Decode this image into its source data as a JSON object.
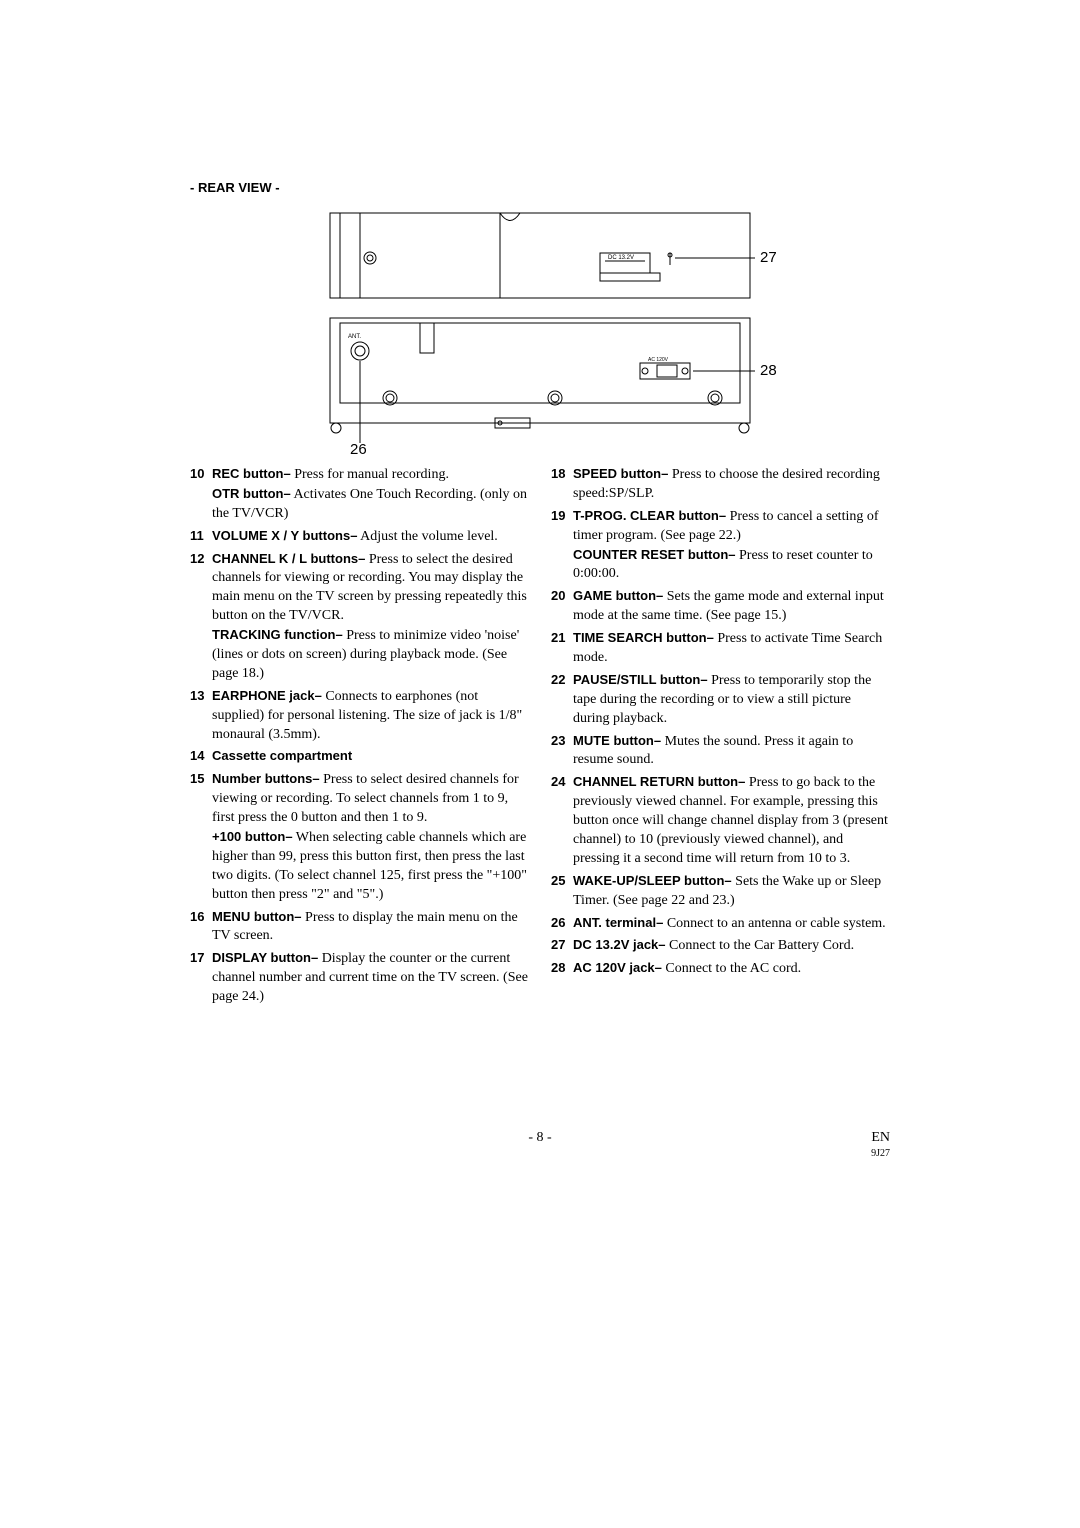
{
  "heading": "- REAR VIEW -",
  "diagram": {
    "callouts": {
      "n26": "26",
      "n27": "27",
      "n28": "28"
    },
    "label_ant": "ANT.",
    "label_dc": "DC 13.2V",
    "label_ac": "AC 120V"
  },
  "left_items": [
    {
      "n": "10",
      "parts": [
        {
          "label": "REC button–",
          "text": " Press for manual recording."
        },
        {
          "label": "OTR button–",
          "text": " Activates One Touch Recording. (only on the TV/VCR)"
        }
      ]
    },
    {
      "n": "11",
      "parts": [
        {
          "label": "VOLUME X / Y buttons–",
          "text": " Adjust the volume level."
        }
      ]
    },
    {
      "n": "12",
      "parts": [
        {
          "label": "CHANNEL K / L buttons–",
          "text": " Press to select the desired channels for viewing or recording. You may display the main menu on the TV screen by pressing repeatedly this button on the TV/VCR."
        },
        {
          "label": "TRACKING function–",
          "text": " Press to minimize video 'noise' (lines or dots on screen) during playback mode. (See page 18.)"
        }
      ]
    },
    {
      "n": "13",
      "parts": [
        {
          "label": "EARPHONE jack–",
          "text": " Connects to earphones (not supplied) for personal listening. The size of jack is 1/8\" monaural (3.5mm)."
        }
      ]
    },
    {
      "n": "14",
      "parts": [
        {
          "label": "Cassette compartment",
          "text": ""
        }
      ]
    },
    {
      "n": "15",
      "parts": [
        {
          "label": "Number buttons–",
          "text": " Press to select desired channels for viewing or recording. To select channels from 1 to 9, first press the 0 button and then 1 to 9."
        },
        {
          "label": "+100 button–",
          "text": " When selecting cable channels which are higher than 99, press this button first, then press the last two digits. (To select channel 125, first press the \"+100\" button then press \"2\" and \"5\".)"
        }
      ]
    },
    {
      "n": "16",
      "parts": [
        {
          "label": "MENU button–",
          "text": " Press to display the main menu on the TV screen."
        }
      ]
    },
    {
      "n": "17",
      "parts": [
        {
          "label": "DISPLAY button–",
          "text": " Display the counter or the current channel number and current time on the TV screen. (See page 24.)"
        }
      ]
    }
  ],
  "right_items": [
    {
      "n": "18",
      "parts": [
        {
          "label": "SPEED button–",
          "text": " Press to choose the desired recording speed:SP/SLP."
        }
      ]
    },
    {
      "n": "19",
      "parts": [
        {
          "label": "T-PROG. CLEAR button–",
          "text": " Press to cancel a setting of timer program. (See page 22.)"
        },
        {
          "label": "COUNTER RESET button–",
          "text": " Press to reset counter to 0:00:00."
        }
      ]
    },
    {
      "n": "20",
      "parts": [
        {
          "label": "GAME button–",
          "text": " Sets the game mode and external input mode at the same time. (See page 15.)"
        }
      ]
    },
    {
      "n": "21",
      "parts": [
        {
          "label": "TIME SEARCH button–",
          "text": " Press to activate Time Search mode."
        }
      ]
    },
    {
      "n": "22",
      "parts": [
        {
          "label": "PAUSE/STILL button–",
          "text": " Press to temporarily stop the tape during the recording or to view a still picture during playback."
        }
      ]
    },
    {
      "n": "23",
      "parts": [
        {
          "label": "MUTE button–",
          "text": " Mutes the sound. Press it again to resume sound."
        }
      ]
    },
    {
      "n": "24",
      "parts": [
        {
          "label": "CHANNEL RETURN button–",
          "text": " Press to go back to the previously viewed channel. For example, pressing this button once will change channel display from 3 (present channel) to 10 (previously viewed channel), and pressing it a second time will return from 10 to 3."
        }
      ]
    },
    {
      "n": "25",
      "parts": [
        {
          "label": "WAKE-UP/SLEEP button–",
          "text": " Sets the Wake up or Sleep Timer. (See page 22 and 23.)"
        }
      ]
    },
    {
      "n": "26",
      "parts": [
        {
          "label": "ANT. terminal–",
          "text": " Connect to an antenna or cable system."
        }
      ]
    },
    {
      "n": "27",
      "parts": [
        {
          "label": "DC 13.2V jack–",
          "text": " Connect to the Car Battery Cord."
        }
      ]
    },
    {
      "n": "28",
      "parts": [
        {
          "label": "AC 120V jack–",
          "text": " Connect to the AC cord."
        }
      ]
    }
  ],
  "footer": {
    "page": "- 8 -",
    "lang": "EN",
    "code": "9J27"
  }
}
